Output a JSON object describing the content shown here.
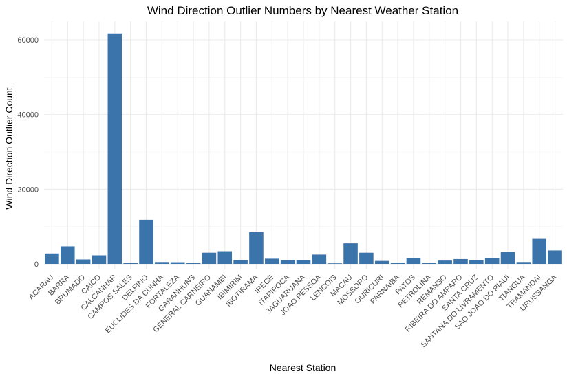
{
  "chart_data": {
    "type": "bar",
    "title": "Wind Direction Outlier Numbers by Nearest Weather Station",
    "xlabel": "Nearest Station",
    "ylabel": "Wind Direction Outlier Count",
    "ylim": [
      0,
      65000
    ],
    "yticks": [
      0,
      20000,
      40000,
      60000
    ],
    "ytick_labels": [
      "0",
      "20000",
      "40000",
      "60000"
    ],
    "grid": true,
    "bar_color": "#3b73ab",
    "categories": [
      "ACARAU",
      "BARRA",
      "BRUMADO",
      "CAICO",
      "CALCANHAR",
      "CAMPOS SALES",
      "DELFINO",
      "EUCLIDES DA CUNHA",
      "FORTALEZA",
      "GARANHUNS",
      "GENERAL CARNEIRO",
      "GUANAMBI",
      "IBIMIRIM",
      "IBOTIRAMA",
      "IRECE",
      "ITAPIPOCA",
      "JAGUARUANA",
      "JOAO PESSOA",
      "LENCOIS",
      "MACAU",
      "MOSSORO",
      "OURICURI",
      "PARNAIBA",
      "PATOS",
      "PETROLINA",
      "REMANSO",
      "RIBEIRA DO AMPARO",
      "SANTA CRUZ",
      "SANTANA DO LIVRAMENTO",
      "SAO JOAO DO PIAUI",
      "TIANGUA",
      "TRAMANDAI",
      "URUSSANGA"
    ],
    "values": [
      2800,
      4700,
      1200,
      2300,
      61700,
      250,
      11800,
      500,
      450,
      200,
      3000,
      3400,
      1000,
      8500,
      1400,
      1000,
      1000,
      2500,
      100,
      5500,
      3000,
      800,
      300,
      1500,
      250,
      900,
      1300,
      1000,
      1500,
      3200,
      500,
      6700,
      3600
    ]
  }
}
